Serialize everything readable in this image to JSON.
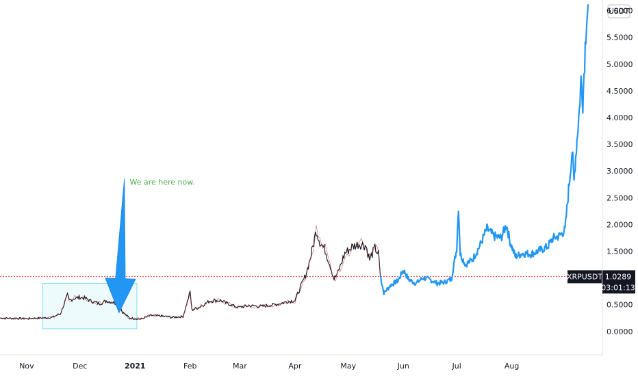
{
  "chart_data": {
    "type": "line",
    "symbol": "XRPUSDT",
    "currency": "USDT",
    "price_axis": {
      "ticks": [
        "6.0000",
        "5.5000",
        "5.0000",
        "4.5000",
        "4.0000",
        "3.5000",
        "3.0000",
        "2.5000",
        "2.0000",
        "1.5000",
        "1.0000",
        "0.5000",
        "0.0000"
      ],
      "ylim": [
        -0.45,
        6.2
      ]
    },
    "time_axis": {
      "labels": [
        {
          "text": "Nov",
          "x": "2020-11-01",
          "bold": false
        },
        {
          "text": "Dec",
          "x": "2020-12-01",
          "bold": false
        },
        {
          "text": "2021",
          "x": "2021-01-01",
          "bold": true
        },
        {
          "text": "Feb",
          "x": "2021-02-01",
          "bold": false
        },
        {
          "text": "Mar",
          "x": "2021-03-01",
          "bold": false
        },
        {
          "text": "Apr",
          "x": "2021-04-01",
          "bold": false
        },
        {
          "text": "May",
          "x": "2021-05-01",
          "bold": false
        },
        {
          "text": "Jun",
          "x": "2021-06-01",
          "bold": false
        },
        {
          "text": "Jul",
          "x": "2021-07-01",
          "bold": false
        },
        {
          "text": "Aug",
          "x": "2021-08-01",
          "bold": false
        }
      ],
      "xlim": [
        "2020-10-17",
        "2021-09-21"
      ]
    },
    "current_price": {
      "value": "1.0289",
      "price": 1.0289,
      "countdown": "03:01:13"
    },
    "series": [
      {
        "role": "history",
        "color": "#131722",
        "points": [
          [
            "2020-10-17",
            0.25
          ],
          [
            "2020-11-01",
            0.24
          ],
          [
            "2020-11-15",
            0.26
          ],
          [
            "2020-11-20",
            0.33
          ],
          [
            "2020-11-24",
            0.68
          ],
          [
            "2020-11-25",
            0.58
          ],
          [
            "2020-11-28",
            0.62
          ],
          [
            "2020-12-01",
            0.64
          ],
          [
            "2020-12-04",
            0.62
          ],
          [
            "2020-12-08",
            0.56
          ],
          [
            "2020-12-12",
            0.52
          ],
          [
            "2020-12-16",
            0.57
          ],
          [
            "2020-12-20",
            0.54
          ],
          [
            "2020-12-23",
            0.5
          ],
          [
            "2020-12-25",
            0.36
          ],
          [
            "2020-12-29",
            0.25
          ],
          [
            "2021-01-04",
            0.23
          ],
          [
            "2021-01-10",
            0.3
          ],
          [
            "2021-01-16",
            0.29
          ],
          [
            "2021-01-22",
            0.26
          ],
          [
            "2021-01-28",
            0.28
          ],
          [
            "2021-02-01",
            0.74
          ],
          [
            "2021-02-02",
            0.4
          ],
          [
            "2021-02-06",
            0.45
          ],
          [
            "2021-02-12",
            0.57
          ],
          [
            "2021-02-18",
            0.58
          ],
          [
            "2021-02-22",
            0.52
          ],
          [
            "2021-02-28",
            0.45
          ],
          [
            "2021-03-06",
            0.48
          ],
          [
            "2021-03-14",
            0.47
          ],
          [
            "2021-03-22",
            0.51
          ],
          [
            "2021-03-28",
            0.56
          ],
          [
            "2021-04-01",
            0.58
          ],
          [
            "2021-04-04",
            0.82
          ],
          [
            "2021-04-07",
            1.05
          ],
          [
            "2021-04-10",
            1.42
          ],
          [
            "2021-04-13",
            1.9
          ],
          [
            "2021-04-15",
            1.68
          ],
          [
            "2021-04-18",
            1.52
          ],
          [
            "2021-04-21",
            1.22
          ],
          [
            "2021-04-23",
            0.98
          ],
          [
            "2021-04-25",
            1.08
          ],
          [
            "2021-04-29",
            1.46
          ],
          [
            "2021-05-03",
            1.58
          ],
          [
            "2021-05-07",
            1.64
          ],
          [
            "2021-05-11",
            1.6
          ],
          [
            "2021-05-13",
            1.34
          ],
          [
            "2021-05-16",
            1.56
          ],
          [
            "2021-05-18",
            1.45
          ],
          [
            "2021-05-19",
            1.05
          ]
        ]
      },
      {
        "role": "projection",
        "color": "#2196f3",
        "points": [
          [
            "2021-05-19",
            1.05
          ],
          [
            "2021-05-21",
            0.72
          ],
          [
            "2021-05-25",
            0.87
          ],
          [
            "2021-05-29",
            0.95
          ],
          [
            "2021-06-01",
            1.15
          ],
          [
            "2021-06-04",
            0.97
          ],
          [
            "2021-06-08",
            0.9
          ],
          [
            "2021-06-12",
            1.0
          ],
          [
            "2021-06-16",
            0.97
          ],
          [
            "2021-06-20",
            0.9
          ],
          [
            "2021-06-24",
            0.92
          ],
          [
            "2021-06-28",
            0.98
          ],
          [
            "2021-07-01",
            1.55
          ],
          [
            "2021-07-02",
            2.35
          ],
          [
            "2021-07-03",
            1.45
          ],
          [
            "2021-07-06",
            1.25
          ],
          [
            "2021-07-10",
            1.35
          ],
          [
            "2021-07-14",
            1.6
          ],
          [
            "2021-07-18",
            1.92
          ],
          [
            "2021-07-22",
            1.78
          ],
          [
            "2021-07-26",
            1.75
          ],
          [
            "2021-07-29",
            2.0
          ],
          [
            "2021-07-31",
            1.68
          ],
          [
            "2021-08-03",
            1.4
          ],
          [
            "2021-08-07",
            1.46
          ],
          [
            "2021-08-12",
            1.45
          ],
          [
            "2021-08-17",
            1.52
          ],
          [
            "2021-08-21",
            1.58
          ],
          [
            "2021-08-24",
            1.74
          ],
          [
            "2021-08-28",
            1.79
          ],
          [
            "2021-08-31",
            1.9
          ],
          [
            "2021-09-02",
            2.65
          ],
          [
            "2021-09-04",
            3.4
          ],
          [
            "2021-09-05",
            2.8
          ],
          [
            "2021-09-06",
            3.3
          ],
          [
            "2021-09-08",
            4.15
          ],
          [
            "2021-09-09",
            4.7
          ],
          [
            "2021-09-10",
            4.3
          ],
          [
            "2021-09-11",
            5.1
          ],
          [
            "2021-09-12",
            5.85
          ],
          [
            "2021-09-13",
            6.12
          ]
        ]
      }
    ],
    "price_line": {
      "price": 1.0289,
      "color": "#e53935",
      "style": "dotted"
    },
    "annotations": [
      {
        "kind": "text",
        "text": "We are here now.",
        "color": "#4caf50",
        "x": "2020-12-29",
        "y": 2.75
      },
      {
        "kind": "arrow",
        "color": "#2196f3",
        "from": {
          "x": "2020-12-26",
          "y": 2.85
        },
        "to": {
          "x": "2020-12-23",
          "y": 0.35
        }
      },
      {
        "kind": "rectangle",
        "color": "#b2ebf2",
        "x0": "2020-11-10",
        "x1": "2021-01-02",
        "y0": 0.05,
        "y1": 0.9
      }
    ],
    "accent_colors": {
      "up_line": "#2196f3",
      "text": "#131722",
      "badge_bg": "#131722",
      "grid": "none"
    },
    "grid": false
  }
}
